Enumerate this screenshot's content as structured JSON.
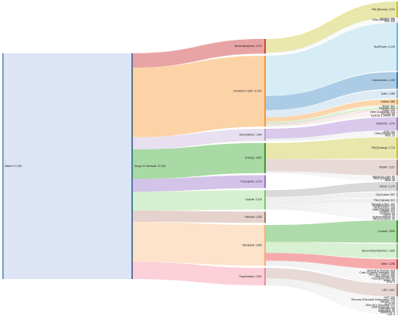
{
  "chart_data": {
    "type": "sankey",
    "title": "",
    "root": {
      "label": "Market",
      "value": "37,026"
    },
    "level1": {
      "label": "Drugs & Chemicals",
      "value": "37,026"
    },
    "level2": [
      {
        "key": "benzo",
        "label": "Benzodiazepines",
        "value": "2,373",
        "value_num": 2373,
        "color": "#e8a4a4",
        "dark": "#d04848"
      },
      {
        "key": "cannabis",
        "label": "Cannabis & Hash",
        "value": "11,451",
        "value_num": 11451,
        "color": "#fcd3a7",
        "dark": "#f49a3c"
      },
      {
        "key": "disso",
        "label": "Dissociatives",
        "value": "1,964",
        "value_num": 1964,
        "color": "#e8e0f0",
        "dark": "#b7a3d4"
      },
      {
        "key": "ecstasy",
        "label": "Ecstasy",
        "value": "4,867",
        "value_num": 4867,
        "color": "#a9d9a4",
        "dark": "#3f9a3a"
      },
      {
        "key": "prescription",
        "label": "Prescription",
        "value": "2,079",
        "value_num": 2079,
        "color": "#d4c3e8",
        "dark": "#9a7bc6"
      },
      {
        "key": "opioids",
        "label": "Opioids",
        "value": "3,133",
        "value_num": 3133,
        "color": "#d5f0d0",
        "dark": "#7dc874"
      },
      {
        "key": "steroids",
        "label": "Steroids",
        "value": "1,828",
        "value_num": 1828,
        "color": "#e6d2cd",
        "dark": "#a87e74"
      },
      {
        "key": "stimulants",
        "label": "Stimulants",
        "value": "6,589",
        "value_num": 6589,
        "color": "#fde3cc",
        "dark": "#f4b27a"
      },
      {
        "key": "psychedelics",
        "label": "Psychedelics",
        "value": "2,822",
        "value_num": 2822,
        "color": "#fbd0d8",
        "dark": "#f08aa0"
      }
    ],
    "leaves": [
      {
        "parent": "benzo",
        "label": "Pills [Benzos]: 2,013",
        "value": 2013,
        "color": "#e8e6a6",
        "dark": "#c4c04a"
      },
      {
        "parent": "benzo",
        "label": "Powder: 324",
        "value": 60,
        "color": "#eeeeee",
        "dark": "#bbbbbb"
      },
      {
        "parent": "benzo",
        "label": "Other [Benzos]: 106",
        "value": 60,
        "color": "#eeeeee",
        "dark": "#bbbbbb"
      },
      {
        "parent": "benzo",
        "label": "RCs: 105",
        "value": 60,
        "color": "#eeeeee",
        "dark": "#bbbbbb"
      },
      {
        "parent": "cannabis",
        "label": "Bud/Flower: 6,135",
        "value": 6135,
        "color": "#d5ecf6",
        "dark": "#6fb7dd"
      },
      {
        "parent": "cannabis",
        "label": "Concentrates: 2,135",
        "value": 2135,
        "color": "#a8c9e4",
        "dark": "#3e7fb8"
      },
      {
        "parent": "cannabis",
        "label": "Hash: 1,086",
        "value": 1086,
        "color": "#dbeaf4",
        "dark": "#8fb8d8"
      },
      {
        "parent": "cannabis",
        "label": "Edibles: 688",
        "value": 688,
        "color": "#fcd3a7",
        "dark": "#f49a3c"
      },
      {
        "parent": "cannabis",
        "label": "Seeds: 201",
        "value": 150,
        "color": "#dcefd6",
        "dark": "#8cc47e"
      },
      {
        "parent": "cannabis",
        "label": "Synthetic: 202",
        "value": 150,
        "color": "#c6e5bd",
        "dark": "#5aa64c"
      },
      {
        "parent": "cannabis",
        "label": "Shake: 139",
        "value": 120,
        "color": "#f6d6d6",
        "dark": "#d98c8c"
      },
      {
        "parent": "cannabis",
        "label": "Other [Cannabis]: 114",
        "value": 120,
        "color": "#ecdff3",
        "dark": "#b99ad0"
      },
      {
        "parent": "cannabis",
        "label": "Pre-rolls: 80",
        "value": 110,
        "color": "#f4e3c4",
        "dark": "#d3a35a"
      },
      {
        "parent": "cannabis",
        "label": "Topicals & Others: 30",
        "value": 90,
        "color": "#eeeeee",
        "dark": "#bbbbbb"
      },
      {
        "parent": "disso",
        "label": "Ketamine: 1,676",
        "value": 1676,
        "color": "#d8c6ea",
        "dark": "#a07cc8"
      },
      {
        "parent": "disso",
        "label": "GHB: 143",
        "value": 130,
        "color": "#eeeeee",
        "dark": "#bbbbbb"
      },
      {
        "parent": "disso",
        "label": "Other [Dissos]: 95",
        "value": 120,
        "color": "#eeeeee",
        "dark": "#bbbbbb"
      },
      {
        "parent": "disso",
        "label": "MXE: 23",
        "value": 120,
        "color": "#eeeeee",
        "dark": "#bbbbbb"
      },
      {
        "parent": "ecstasy",
        "label": "Pills [Ecstasy]: 2,713",
        "value": 2713,
        "color": "#e8e6a6",
        "dark": "#c4c04a"
      },
      {
        "parent": "ecstasy",
        "label": "MDMA: 2,027",
        "value": 2027,
        "color": "#e6d8d4",
        "dark": "#b08a80"
      },
      {
        "parent": "ecstasy",
        "label": "Methylone & BK: 46",
        "value": 110,
        "color": "#eeeeee",
        "dark": "#bbbbbb"
      },
      {
        "parent": "ecstasy",
        "label": "Other [Ecstasy]: 43",
        "value": 110,
        "color": "#eeeeee",
        "dark": "#bbbbbb"
      },
      {
        "parent": "ecstasy",
        "label": "MDA: 38",
        "value": 110,
        "color": "#eeeeee",
        "dark": "#bbbbbb"
      },
      {
        "parent": "opioids",
        "label": "Heroin: 1,176",
        "value": 1176,
        "color": "#d7d7d7",
        "dark": "#9a9a9a"
      },
      {
        "parent": "opioids",
        "label": "OxyCodone: 657",
        "value": 657,
        "color": "#eeeeee",
        "dark": "#bbbbbb"
      },
      {
        "parent": "opioids",
        "label": "Pills [Opioids]: 602",
        "value": 602,
        "color": "#eeeeee",
        "dark": "#bbbbbb"
      },
      {
        "parent": "opioids",
        "label": "Fentanyl & RCs: 163",
        "value": 110,
        "color": "#eeeeee",
        "dark": "#bbbbbb"
      },
      {
        "parent": "opioids",
        "label": "Buprenorphine: 151",
        "value": 110,
        "color": "#eeeeee",
        "dark": "#bbbbbb"
      },
      {
        "parent": "opioids",
        "label": "Hydrocodone: 135",
        "value": 110,
        "color": "#eeeeee",
        "dark": "#bbbbbb"
      },
      {
        "parent": "opioids",
        "label": "Other [Opioids]: 132",
        "value": 110,
        "color": "#eeeeee",
        "dark": "#bbbbbb"
      },
      {
        "parent": "opioids",
        "label": "Codeine: 102",
        "value": 110,
        "color": "#eeeeee",
        "dark": "#bbbbbb"
      },
      {
        "parent": "opioids",
        "label": "Morphine: 64",
        "value": 110,
        "color": "#eeeeee",
        "dark": "#bbbbbb"
      },
      {
        "parent": "opioids",
        "label": "Opium: 44",
        "value": 110,
        "color": "#eeeeee",
        "dark": "#bbbbbb"
      },
      {
        "parent": "opioids",
        "label": "Hydromorphone: 40",
        "value": 110,
        "color": "#eeeeee",
        "dark": "#bbbbbb"
      },
      {
        "parent": "opioids",
        "label": "Dihydrocodeine: 30",
        "value": 110,
        "color": "#eeeeee",
        "dark": "#bbbbbb"
      },
      {
        "parent": "stimulants",
        "label": "Cocaine: 2,838",
        "value": 2838,
        "color": "#a9d9a4",
        "dark": "#3f9a3a"
      },
      {
        "parent": "stimulants",
        "label": "Speed (Amphetamine): 1,836",
        "value": 1836,
        "color": "#d5f0d0",
        "dark": "#7dc874"
      },
      {
        "parent": "stimulants",
        "label": "Meth: 1,288",
        "value": 1288,
        "color": "#f4a6a6",
        "dark": "#d44a4a"
      },
      {
        "parent": "stimulants",
        "label": "Adderall & Vyvanse: 414",
        "value": 150,
        "color": "#eeeeee",
        "dark": "#bbbbbb"
      },
      {
        "parent": "stimulants",
        "label": "Crack (Cocaine Freebase): 268",
        "value": 130,
        "color": "#eeeeee",
        "dark": "#bbbbbb"
      },
      {
        "parent": "stimulants",
        "label": "Other RCs (Stims): 206",
        "value": 130,
        "color": "#eeeeee",
        "dark": "#bbbbbb"
      },
      {
        "parent": "stimulants",
        "label": "Other [Stims]: 180",
        "value": 130,
        "color": "#eeeeee",
        "dark": "#bbbbbb"
      },
      {
        "parent": "stimulants",
        "label": "Prescription Stim: 90",
        "value": 120,
        "color": "#eeeeee",
        "dark": "#bbbbbb"
      },
      {
        "parent": "stimulants",
        "label": "Ritalin: 56",
        "value": 110,
        "color": "#eeeeee",
        "dark": "#bbbbbb"
      },
      {
        "parent": "stimulants",
        "label": "2-FA: 2",
        "value": 100,
        "color": "#eeeeee",
        "dark": "#bbbbbb"
      },
      {
        "parent": "psychedelics",
        "label": "LSD: 1,631",
        "value": 1631,
        "color": "#e6d8d4",
        "dark": "#b08a80"
      },
      {
        "parent": "psychedelics",
        "label": "DMT: 329",
        "value": 120,
        "color": "#eeeeee",
        "dark": "#bbbbbb"
      },
      {
        "parent": "psychedelics",
        "label": "Shrooms (Psilocybin Mushrooms): 279",
        "value": 120,
        "color": "#eeeeee",
        "dark": "#bbbbbb"
      },
      {
        "parent": "psychedelics",
        "label": "NBOMe: 175",
        "value": 110,
        "color": "#eeeeee",
        "dark": "#bbbbbb"
      },
      {
        "parent": "psychedelics",
        "label": "2C-B: 84",
        "value": 110,
        "color": "#eeeeee",
        "dark": "#bbbbbb"
      },
      {
        "parent": "psychedelics",
        "label": "Other RCs (Psyches): 117",
        "value": 110,
        "color": "#eeeeee",
        "dark": "#bbbbbb"
      },
      {
        "parent": "psychedelics",
        "label": "Other [Psyches]: 110",
        "value": 110,
        "color": "#eeeeee",
        "dark": "#bbbbbb"
      },
      {
        "parent": "psychedelics",
        "label": "Mescaline: 65",
        "value": 110,
        "color": "#eeeeee",
        "dark": "#bbbbbb"
      },
      {
        "parent": "psychedelics",
        "label": "Ayahuasca: 30",
        "value": 110,
        "color": "#eeeeee",
        "dark": "#bbbbbb"
      },
      {
        "parent": "psychedelics",
        "label": "DMA/DOx: 5",
        "value": 100,
        "color": "#eeeeee",
        "dark": "#bbbbbb"
      },
      {
        "parent": "psychedelics",
        "label": "LSA: 4",
        "value": 100,
        "color": "#eeeeee",
        "dark": "#bbbbbb"
      }
    ],
    "colors": {
      "root_fill": "#dde5f4",
      "root_bar": "#4a7fb8",
      "drugs_fill": "#dde5f4",
      "drugs_bar": "#4a7fb8"
    }
  }
}
